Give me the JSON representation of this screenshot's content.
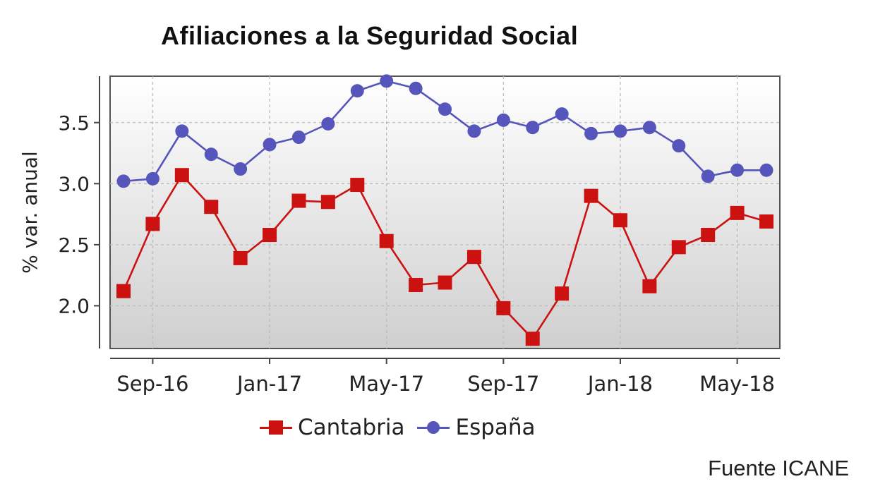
{
  "chart_data": {
    "type": "line",
    "title": "Afiliaciones a la Seguridad Social",
    "ylabel": "% var. anual",
    "xlabel": "",
    "ylim": [
      1.65,
      3.88
    ],
    "yticks": [
      2.0,
      2.5,
      3.0,
      3.5
    ],
    "ytick_labels": [
      "2.0",
      "2.5",
      "3.0",
      "3.5"
    ],
    "x": [
      "Aug-16",
      "Sep-16",
      "Oct-16",
      "Nov-16",
      "Dec-16",
      "Jan-17",
      "Feb-17",
      "Mar-17",
      "Apr-17",
      "May-17",
      "Jun-17",
      "Jul-17",
      "Aug-17",
      "Sep-17",
      "Oct-17",
      "Nov-17",
      "Dec-17",
      "Jan-18",
      "Feb-18",
      "Mar-18",
      "Apr-18",
      "May-18",
      "Jun-18"
    ],
    "xticks": [
      {
        "index": 1,
        "label": "Sep-16"
      },
      {
        "index": 5,
        "label": "Jan-17"
      },
      {
        "index": 9,
        "label": "May-17"
      },
      {
        "index": 13,
        "label": "Sep-17"
      },
      {
        "index": 17,
        "label": "Jan-18"
      },
      {
        "index": 21,
        "label": "May-18"
      }
    ],
    "grid": true,
    "legend_position": "bottom",
    "series": [
      {
        "name": "Cantabria",
        "color": "#cc1111",
        "marker": "square",
        "values": [
          2.12,
          2.67,
          3.07,
          2.81,
          2.39,
          2.58,
          2.86,
          2.85,
          2.99,
          2.53,
          2.17,
          2.19,
          2.4,
          1.98,
          1.73,
          2.1,
          2.9,
          2.7,
          2.16,
          2.48,
          2.58,
          2.76,
          2.69
        ]
      },
      {
        "name": "España",
        "color": "#5555bb",
        "marker": "circle",
        "values": [
          3.02,
          3.04,
          3.43,
          3.24,
          3.12,
          3.32,
          3.38,
          3.49,
          3.76,
          3.84,
          3.78,
          3.61,
          3.43,
          3.52,
          3.46,
          3.57,
          3.41,
          3.43,
          3.46,
          3.31,
          3.06,
          3.11,
          3.11
        ]
      }
    ]
  },
  "source": "Fuente ICANE"
}
